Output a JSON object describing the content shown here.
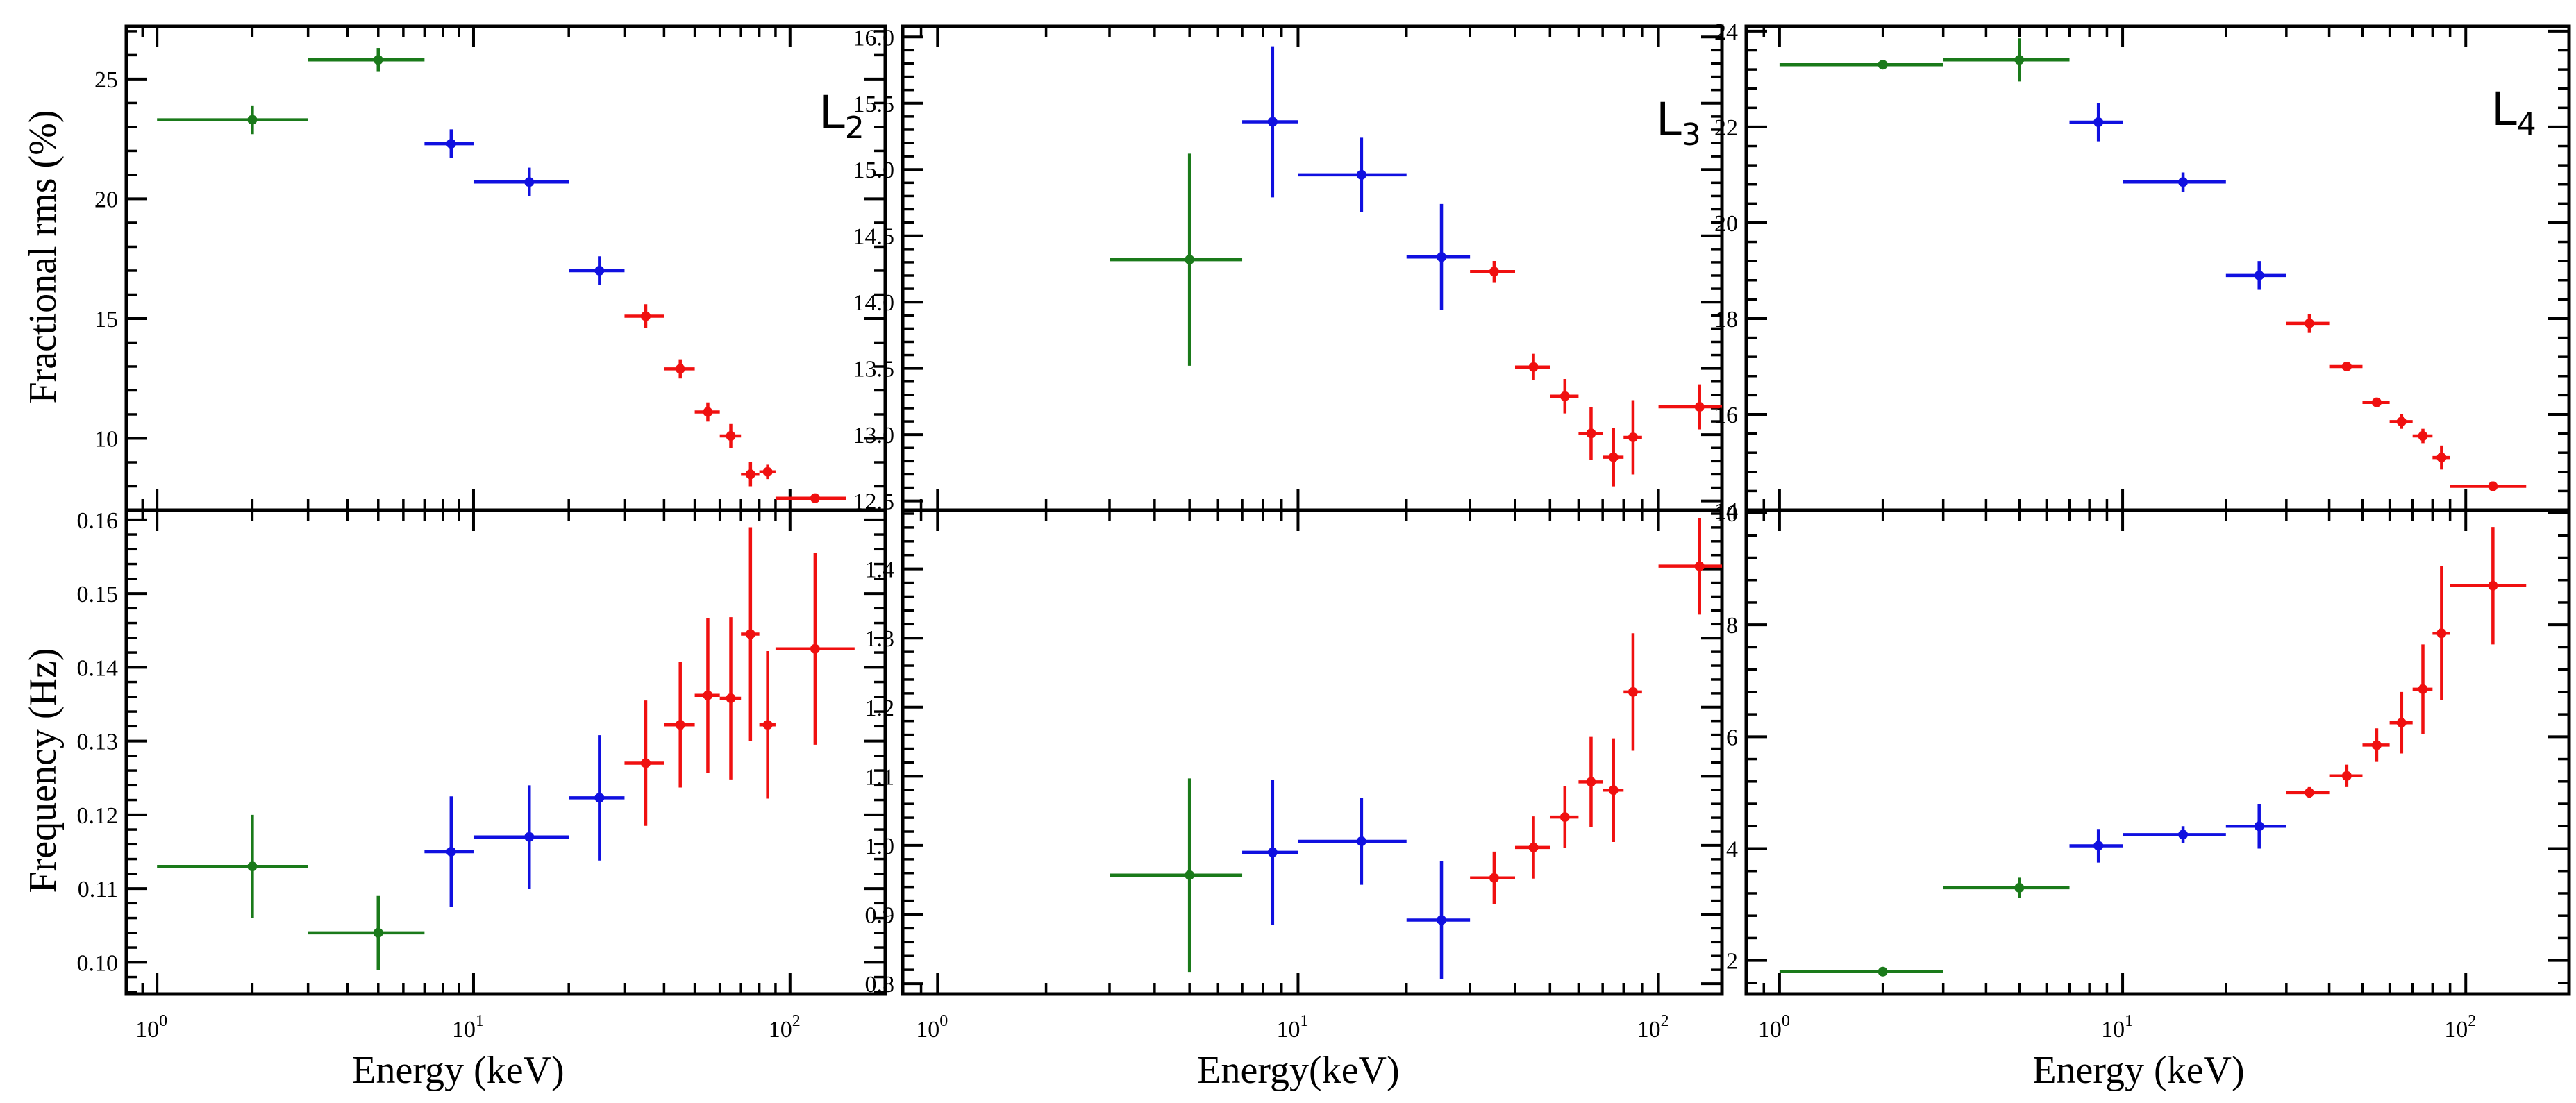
{
  "colors": {
    "green": "#1a7a1a",
    "blue": "#1010e0",
    "red": "#f01010"
  },
  "chart_data": [
    {
      "type": "scatter",
      "panel": "L2 upper",
      "label_main": "L",
      "label_sub": "2",
      "ylabel": "Fractional rms (%)",
      "xlabel": "",
      "xscale": "log",
      "xlim": [
        0.8,
        200
      ],
      "ylim": [
        7.0,
        27.2
      ],
      "yticks": [
        10,
        15,
        20,
        25
      ],
      "ytick_labels": [
        "10",
        "15",
        "20",
        "25"
      ],
      "points": [
        {
          "x": 2,
          "xlo": 1,
          "xhi": 3,
          "y": 23.3,
          "yerr": 0.6,
          "color": "green"
        },
        {
          "x": 5,
          "xlo": 3,
          "xhi": 7,
          "y": 25.8,
          "yerr": 0.5,
          "color": "green"
        },
        {
          "x": 8.5,
          "xlo": 7,
          "xhi": 10,
          "y": 22.3,
          "yerr": 0.6,
          "color": "blue"
        },
        {
          "x": 15,
          "xlo": 10,
          "xhi": 20,
          "y": 20.7,
          "yerr": 0.6,
          "color": "blue"
        },
        {
          "x": 25,
          "xlo": 20,
          "xhi": 30,
          "y": 17.0,
          "yerr": 0.6,
          "color": "blue"
        },
        {
          "x": 35,
          "xlo": 30,
          "xhi": 40,
          "y": 15.1,
          "yerr": 0.5,
          "color": "red"
        },
        {
          "x": 45,
          "xlo": 40,
          "xhi": 50,
          "y": 12.9,
          "yerr": 0.4,
          "color": "red"
        },
        {
          "x": 55,
          "xlo": 50,
          "xhi": 60,
          "y": 11.1,
          "yerr": 0.4,
          "color": "red"
        },
        {
          "x": 65,
          "xlo": 60,
          "xhi": 70,
          "y": 10.1,
          "yerr": 0.5,
          "color": "red"
        },
        {
          "x": 75,
          "xlo": 70,
          "xhi": 80,
          "y": 8.5,
          "yerr": 0.5,
          "color": "red"
        },
        {
          "x": 85,
          "xlo": 80,
          "xhi": 90,
          "y": 8.6,
          "yerr": 0.3,
          "color": "red"
        },
        {
          "x": 120,
          "xlo": 90,
          "xhi": 150,
          "y": 7.5,
          "yerr": 0.2,
          "color": "red"
        }
      ]
    },
    {
      "type": "scatter",
      "panel": "L3 upper",
      "label_main": "L",
      "label_sub": "3",
      "ylabel": "",
      "xlabel": "",
      "xscale": "log",
      "xlim": [
        0.8,
        150
      ],
      "ylim": [
        12.43,
        16.08
      ],
      "yticks": [
        12.5,
        13.0,
        13.5,
        14.0,
        14.5,
        15.0,
        15.5,
        16.0
      ],
      "ytick_labels": [
        "12.5",
        "13.0",
        "13.5",
        "14.0",
        "14.5",
        "15.0",
        "15.5",
        "16.0"
      ],
      "points": [
        {
          "x": 5,
          "xlo": 3,
          "xhi": 7,
          "y": 14.32,
          "yerr": 0.8,
          "color": "green"
        },
        {
          "x": 8.5,
          "xlo": 7,
          "xhi": 10,
          "y": 15.36,
          "yerr": 0.57,
          "color": "blue"
        },
        {
          "x": 15,
          "xlo": 10,
          "xhi": 20,
          "y": 14.96,
          "yerr": 0.28,
          "color": "blue"
        },
        {
          "x": 25,
          "xlo": 20,
          "xhi": 30,
          "y": 14.34,
          "yerr": 0.4,
          "color": "blue"
        },
        {
          "x": 35,
          "xlo": 30,
          "xhi": 40,
          "y": 14.23,
          "yerr": 0.08,
          "color": "red"
        },
        {
          "x": 45,
          "xlo": 40,
          "xhi": 50,
          "y": 13.51,
          "yerr": 0.1,
          "color": "red"
        },
        {
          "x": 55,
          "xlo": 50,
          "xhi": 60,
          "y": 13.29,
          "yerr": 0.13,
          "color": "red"
        },
        {
          "x": 65,
          "xlo": 60,
          "xhi": 70,
          "y": 13.01,
          "yerr": 0.2,
          "color": "red"
        },
        {
          "x": 75,
          "xlo": 70,
          "xhi": 80,
          "y": 12.83,
          "yerr": 0.22,
          "color": "red"
        },
        {
          "x": 85,
          "xlo": 80,
          "xhi": 90,
          "y": 12.98,
          "yerr": 0.28,
          "color": "red"
        },
        {
          "x": 130,
          "xlo": 100,
          "xhi": 160,
          "y": 13.21,
          "yerr": 0.17,
          "color": "red"
        }
      ]
    },
    {
      "type": "scatter",
      "panel": "L4 upper",
      "label_main": "L",
      "label_sub": "4",
      "ylabel": "",
      "xlabel": "",
      "xscale": "log",
      "xlim": [
        0.8,
        200
      ],
      "ylim": [
        14.0,
        24.1
      ],
      "yticks": [
        14,
        16,
        18,
        20,
        22,
        24
      ],
      "ytick_labels": [
        "14",
        "16",
        "18",
        "20",
        "22",
        "24"
      ],
      "points": [
        {
          "x": 2,
          "xlo": 1,
          "xhi": 3,
          "y": 23.3,
          "yerr": 0.05,
          "color": "green"
        },
        {
          "x": 5,
          "xlo": 3,
          "xhi": 7,
          "y": 23.4,
          "yerr": 0.45,
          "color": "green"
        },
        {
          "x": 8.5,
          "xlo": 7,
          "xhi": 10,
          "y": 22.1,
          "yerr": 0.4,
          "color": "blue"
        },
        {
          "x": 15,
          "xlo": 10,
          "xhi": 20,
          "y": 20.85,
          "yerr": 0.2,
          "color": "blue"
        },
        {
          "x": 25,
          "xlo": 20,
          "xhi": 30,
          "y": 18.9,
          "yerr": 0.3,
          "color": "blue"
        },
        {
          "x": 35,
          "xlo": 30,
          "xhi": 40,
          "y": 17.9,
          "yerr": 0.2,
          "color": "red"
        },
        {
          "x": 45,
          "xlo": 40,
          "xhi": 50,
          "y": 17.0,
          "yerr": 0.1,
          "color": "red"
        },
        {
          "x": 55,
          "xlo": 50,
          "xhi": 60,
          "y": 16.25,
          "yerr": 0.1,
          "color": "red"
        },
        {
          "x": 65,
          "xlo": 60,
          "xhi": 70,
          "y": 15.85,
          "yerr": 0.15,
          "color": "red"
        },
        {
          "x": 75,
          "xlo": 70,
          "xhi": 80,
          "y": 15.55,
          "yerr": 0.15,
          "color": "red"
        },
        {
          "x": 85,
          "xlo": 80,
          "xhi": 90,
          "y": 15.1,
          "yerr": 0.25,
          "color": "red"
        },
        {
          "x": 120,
          "xlo": 90,
          "xhi": 150,
          "y": 14.5,
          "yerr": 0.1,
          "color": "red"
        }
      ]
    },
    {
      "type": "scatter",
      "panel": "L2 lower",
      "ylabel": "Frequency (Hz)",
      "xlabel": "Energy (keV)",
      "xscale": "log",
      "xlim": [
        0.8,
        200
      ],
      "ylim": [
        0.0957,
        0.1613
      ],
      "xticks": [
        1,
        10,
        100
      ],
      "xtick_labels": [
        "10",
        "10",
        "10"
      ],
      "xtick_exponents": [
        "0",
        "1",
        "2"
      ],
      "yticks": [
        0.1,
        0.11,
        0.12,
        0.13,
        0.14,
        0.15,
        0.16
      ],
      "ytick_labels": [
        "0.10",
        "0.11",
        "0.12",
        "0.13",
        "0.14",
        "0.15",
        "0.16"
      ],
      "points": [
        {
          "x": 2,
          "xlo": 1,
          "xhi": 3,
          "y": 0.113,
          "yerr": 0.007,
          "color": "green"
        },
        {
          "x": 5,
          "xlo": 3,
          "xhi": 7,
          "y": 0.104,
          "yerr": 0.005,
          "color": "green"
        },
        {
          "x": 8.5,
          "xlo": 7,
          "xhi": 10,
          "y": 0.115,
          "yerr": 0.0075,
          "color": "blue"
        },
        {
          "x": 15,
          "xlo": 10,
          "xhi": 20,
          "y": 0.117,
          "yerr": 0.007,
          "color": "blue"
        },
        {
          "x": 25,
          "xlo": 20,
          "xhi": 30,
          "y": 0.1223,
          "yerr": 0.0085,
          "color": "blue"
        },
        {
          "x": 35,
          "xlo": 30,
          "xhi": 40,
          "y": 0.127,
          "yerr": 0.0085,
          "color": "red"
        },
        {
          "x": 45,
          "xlo": 40,
          "xhi": 50,
          "y": 0.1322,
          "yerr": 0.0085,
          "color": "red"
        },
        {
          "x": 55,
          "xlo": 50,
          "xhi": 60,
          "y": 0.1362,
          "yerr": 0.0105,
          "color": "red"
        },
        {
          "x": 65,
          "xlo": 60,
          "xhi": 70,
          "y": 0.1358,
          "yerr": 0.011,
          "color": "red"
        },
        {
          "x": 75,
          "xlo": 70,
          "xhi": 80,
          "y": 0.1445,
          "yerr": 0.0145,
          "color": "red"
        },
        {
          "x": 85,
          "xlo": 80,
          "xhi": 90,
          "y": 0.1322,
          "yerr": 0.01,
          "color": "red"
        },
        {
          "x": 120,
          "xlo": 90,
          "xhi": 160,
          "y": 0.1425,
          "yerr": 0.013,
          "color": "red"
        }
      ]
    },
    {
      "type": "scatter",
      "panel": "L3 lower",
      "ylabel": "",
      "xlabel": "Energy(keV)",
      "xscale": "log",
      "xlim": [
        0.8,
        150
      ],
      "ylim": [
        0.785,
        1.485
      ],
      "xticks": [
        1,
        10,
        100
      ],
      "xtick_labels": [
        "10",
        "10",
        "10"
      ],
      "xtick_exponents": [
        "0",
        "1",
        "2"
      ],
      "yticks": [
        0.8,
        0.9,
        1.0,
        1.1,
        1.2,
        1.3,
        1.4
      ],
      "ytick_labels": [
        "0.8",
        "0.9",
        "1.0",
        "1.1",
        "1.2",
        "1.3",
        "1.4"
      ],
      "points": [
        {
          "x": 5,
          "xlo": 3,
          "xhi": 7,
          "y": 0.957,
          "yerr": 0.14,
          "color": "green"
        },
        {
          "x": 8.5,
          "xlo": 7,
          "xhi": 10,
          "y": 0.99,
          "yerr": 0.105,
          "color": "blue"
        },
        {
          "x": 15,
          "xlo": 10,
          "xhi": 20,
          "y": 1.006,
          "yerr": 0.063,
          "color": "blue"
        },
        {
          "x": 25,
          "xlo": 20,
          "xhi": 30,
          "y": 0.892,
          "yerr": 0.085,
          "color": "blue"
        },
        {
          "x": 35,
          "xlo": 30,
          "xhi": 40,
          "y": 0.953,
          "yerr": 0.038,
          "color": "red"
        },
        {
          "x": 45,
          "xlo": 40,
          "xhi": 50,
          "y": 0.997,
          "yerr": 0.045,
          "color": "red"
        },
        {
          "x": 55,
          "xlo": 50,
          "xhi": 60,
          "y": 1.041,
          "yerr": 0.045,
          "color": "red"
        },
        {
          "x": 65,
          "xlo": 60,
          "xhi": 70,
          "y": 1.092,
          "yerr": 0.065,
          "color": "red"
        },
        {
          "x": 75,
          "xlo": 70,
          "xhi": 80,
          "y": 1.08,
          "yerr": 0.075,
          "color": "red"
        },
        {
          "x": 85,
          "xlo": 80,
          "xhi": 90,
          "y": 1.222,
          "yerr": 0.085,
          "color": "red"
        },
        {
          "x": 130,
          "xlo": 100,
          "xhi": 160,
          "y": 1.404,
          "yerr": 0.07,
          "color": "red"
        }
      ]
    },
    {
      "type": "scatter",
      "panel": "L4 lower",
      "ylabel": "",
      "xlabel": "Energy (keV)",
      "xscale": "log",
      "xlim": [
        0.8,
        200
      ],
      "ylim": [
        1.4,
        10.05
      ],
      "xticks": [
        1,
        10,
        100
      ],
      "xtick_labels": [
        "10",
        "10",
        "10"
      ],
      "xtick_exponents": [
        "0",
        "1",
        "2"
      ],
      "yticks": [
        2,
        4,
        6,
        8,
        10
      ],
      "ytick_labels": [
        "2",
        "4",
        "6",
        "8",
        "10"
      ],
      "points": [
        {
          "x": 2,
          "xlo": 1,
          "xhi": 3,
          "y": 1.8,
          "yerr": 0.05,
          "color": "green"
        },
        {
          "x": 5,
          "xlo": 3,
          "xhi": 7,
          "y": 3.3,
          "yerr": 0.18,
          "color": "green"
        },
        {
          "x": 8.5,
          "xlo": 7,
          "xhi": 10,
          "y": 4.05,
          "yerr": 0.3,
          "color": "blue"
        },
        {
          "x": 15,
          "xlo": 10,
          "xhi": 20,
          "y": 4.25,
          "yerr": 0.15,
          "color": "blue"
        },
        {
          "x": 25,
          "xlo": 20,
          "xhi": 30,
          "y": 4.4,
          "yerr": 0.4,
          "color": "blue"
        },
        {
          "x": 35,
          "xlo": 30,
          "xhi": 40,
          "y": 5.0,
          "yerr": 0.1,
          "color": "red"
        },
        {
          "x": 45,
          "xlo": 40,
          "xhi": 50,
          "y": 5.3,
          "yerr": 0.2,
          "color": "red"
        },
        {
          "x": 55,
          "xlo": 50,
          "xhi": 60,
          "y": 5.85,
          "yerr": 0.3,
          "color": "red"
        },
        {
          "x": 65,
          "xlo": 60,
          "xhi": 70,
          "y": 6.25,
          "yerr": 0.55,
          "color": "red"
        },
        {
          "x": 75,
          "xlo": 70,
          "xhi": 80,
          "y": 6.85,
          "yerr": 0.8,
          "color": "red"
        },
        {
          "x": 85,
          "xlo": 80,
          "xhi": 90,
          "y": 7.85,
          "yerr": 1.2,
          "color": "red"
        },
        {
          "x": 120,
          "xlo": 90,
          "xhi": 150,
          "y": 8.7,
          "yerr": 1.05,
          "color": "red"
        }
      ]
    }
  ]
}
